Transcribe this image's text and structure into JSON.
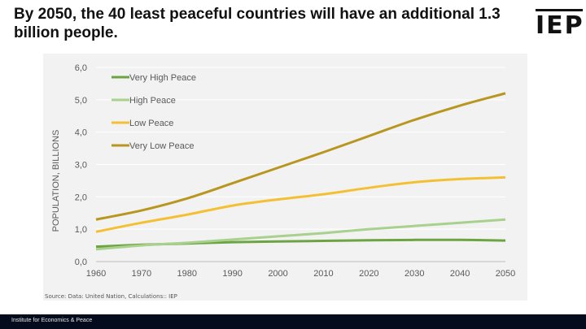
{
  "title": "By 2050, the 40 least peaceful countries will have an additional 1.3 billion people.",
  "logo": "IEP",
  "footer": "Institute for Economics & Peace",
  "chart_data": {
    "type": "line",
    "title": "",
    "xlabel": "",
    "ylabel": "POPULATION, BILLIONS",
    "x": [
      1960,
      1970,
      1980,
      1990,
      2000,
      2010,
      2020,
      2030,
      2040,
      2050
    ],
    "x_ticks": [
      "1960",
      "1970",
      "1980",
      "1990",
      "2000",
      "2010",
      "2020",
      "2030",
      "2040",
      "2050"
    ],
    "y_ticks": [
      "0,0",
      "1,0",
      "2,0",
      "3,0",
      "4,0",
      "5,0",
      "6,0"
    ],
    "ylim": [
      0,
      6
    ],
    "grid": "horizontal",
    "legend_placement": "top-left",
    "source": "Source: Data: United Nation, Calculations:: IEP",
    "series": [
      {
        "name": "Very High Peace",
        "color": "#6ca443",
        "values": [
          0.46,
          0.52,
          0.56,
          0.6,
          0.62,
          0.64,
          0.66,
          0.67,
          0.67,
          0.65
        ]
      },
      {
        "name": "High Peace",
        "color": "#a9d18e",
        "values": [
          0.38,
          0.5,
          0.58,
          0.68,
          0.78,
          0.88,
          1.0,
          1.1,
          1.2,
          1.3
        ]
      },
      {
        "name": "Low Peace",
        "color": "#f4c033",
        "values": [
          0.92,
          1.2,
          1.45,
          1.73,
          1.92,
          2.08,
          2.28,
          2.45,
          2.55,
          2.6
        ]
      },
      {
        "name": "Very Low Peace",
        "color": "#b8961f",
        "values": [
          1.3,
          1.58,
          1.95,
          2.42,
          2.9,
          3.38,
          3.88,
          4.38,
          4.82,
          5.2
        ]
      }
    ]
  }
}
